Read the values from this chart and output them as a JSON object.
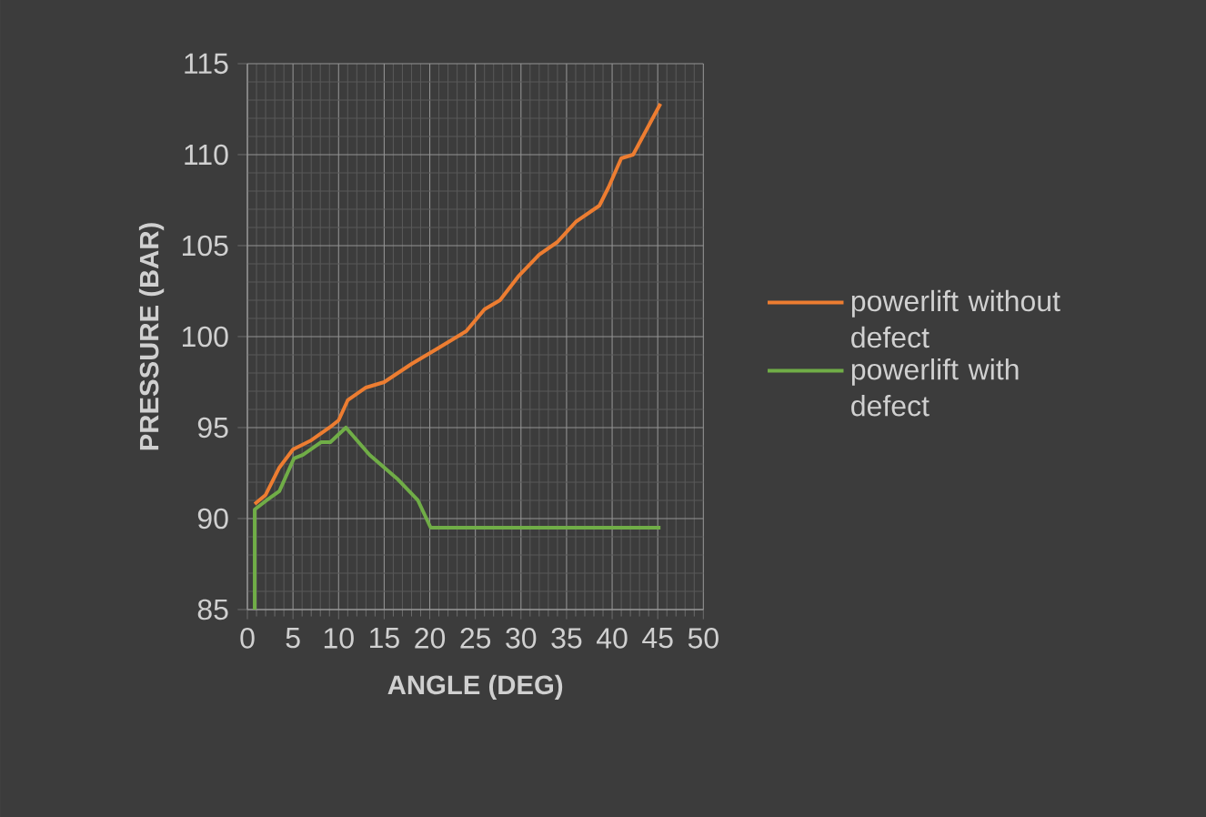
{
  "chart_data": {
    "type": "line",
    "xlabel": "ANGLE (DEG)",
    "ylabel": "PRESSURE (BAR)",
    "xlim": [
      0,
      50
    ],
    "ylim": [
      85,
      115
    ],
    "xticks": [
      0,
      5,
      10,
      15,
      20,
      25,
      30,
      35,
      40,
      45,
      50
    ],
    "yticks": [
      85,
      90,
      95,
      100,
      105,
      110,
      115
    ],
    "grid": true,
    "legend": "right",
    "marker": "none",
    "line_style": "solid",
    "series": [
      {
        "name": "powerlift without defect",
        "color": "#ed7d31",
        "x": [
          0.8,
          2,
          3.5,
          5,
          7,
          9,
          10,
          11,
          13,
          15,
          18,
          20.7,
          24,
          26,
          27.7,
          29.7,
          32,
          34,
          36,
          38.6,
          39.6,
          41,
          42.3,
          45.3
        ],
        "values": [
          90.8,
          91.3,
          92.8,
          93.8,
          94.3,
          95.0,
          95.4,
          96.5,
          97.2,
          97.5,
          98.5,
          99.3,
          100.3,
          101.5,
          102,
          103.3,
          104.5,
          105.2,
          106.3,
          107.2,
          108.2,
          109.8,
          110,
          112.8
        ]
      },
      {
        "name": "powerlift with defect",
        "color": "#70ad47",
        "x": [
          0.8,
          0.8,
          2.1,
          3.5,
          5.1,
          6.1,
          8.1,
          9.1,
          10.8,
          13.4,
          16.4,
          18.7,
          20.1,
          45.3
        ],
        "values": [
          85,
          90.5,
          91.0,
          91.5,
          93.3,
          93.5,
          94.2,
          94.2,
          95.0,
          93.5,
          92.2,
          91.0,
          89.5,
          89.5
        ]
      }
    ]
  }
}
